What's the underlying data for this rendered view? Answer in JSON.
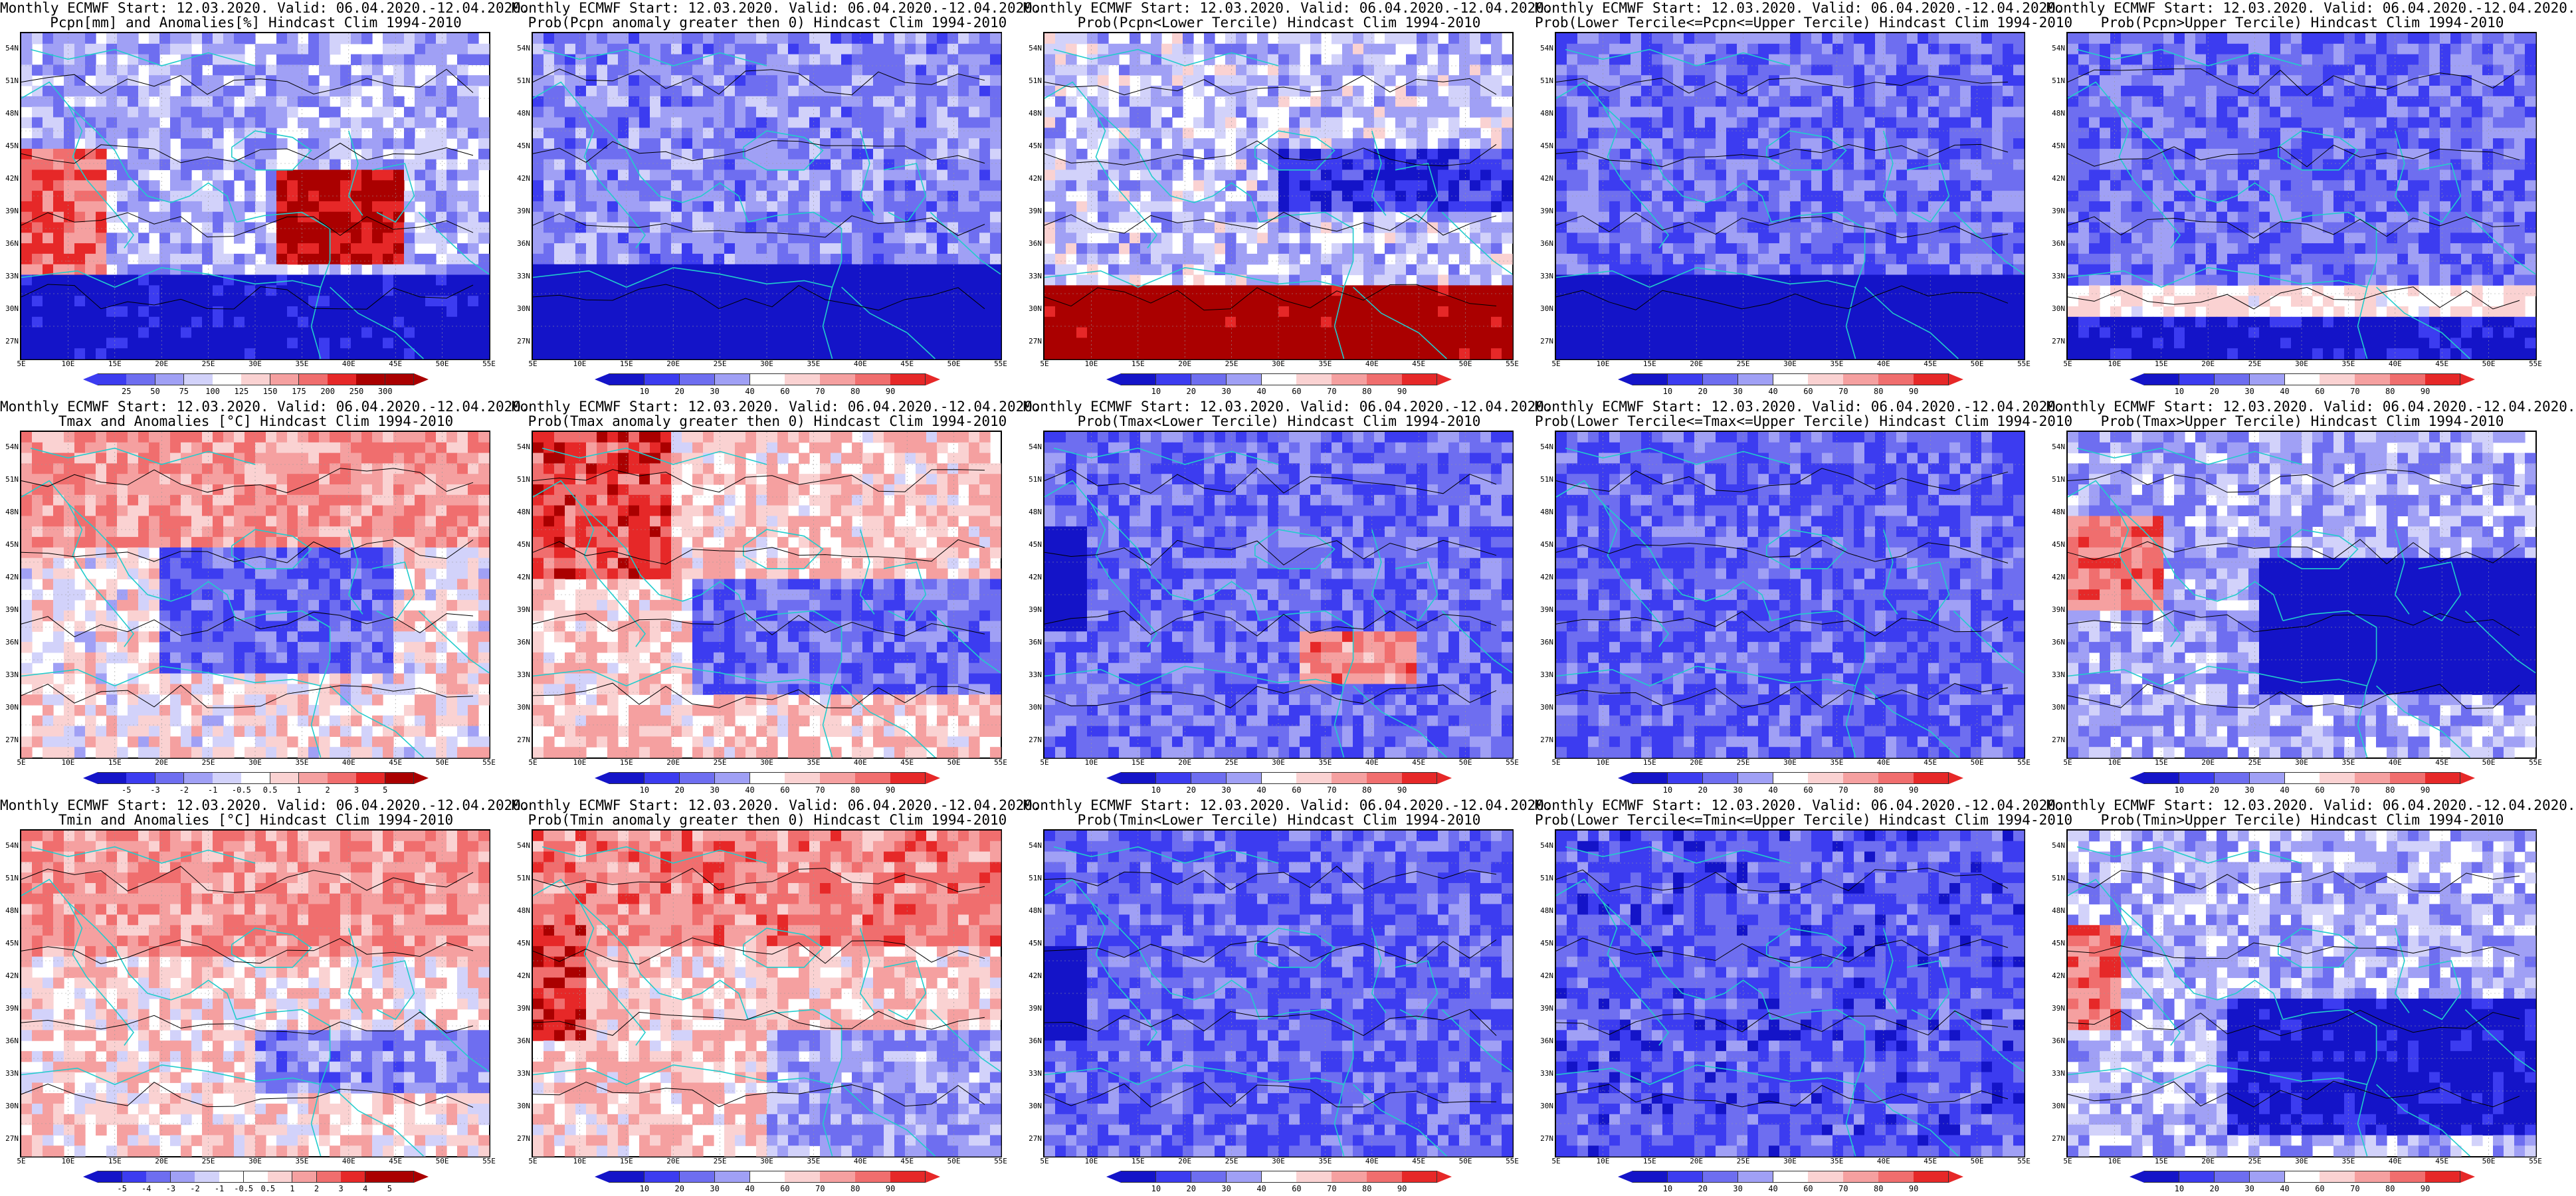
{
  "colors": {
    "dark_blue": "#1414c8",
    "blue": "#3c3cf0",
    "mid_blue": "#6e6ef0",
    "light_blue": "#a0a0f5",
    "pale_blue": "#d2d2fa",
    "white": "#ffffff",
    "pale_red": "#fad2d2",
    "light_red": "#f5a0a0",
    "mid_red": "#f06e6e",
    "red": "#e62828",
    "dark_red": "#aa0000",
    "coast": "#22cccc",
    "contour": "#000000"
  },
  "axes": {
    "lat_labels": [
      "54N",
      "51N",
      "48N",
      "45N",
      "42N",
      "39N",
      "36N",
      "33N",
      "30N",
      "27N"
    ],
    "lon_labels": [
      "5E",
      "10E",
      "15E",
      "20E",
      "25E",
      "30E",
      "35E",
      "40E",
      "45E",
      "50E",
      "55E"
    ]
  },
  "colorbars": {
    "precip": [
      "25",
      "50",
      "75",
      "100",
      "125",
      "150",
      "175",
      "200",
      "250",
      "300"
    ],
    "prob": [
      "10",
      "20",
      "30",
      "40",
      "60",
      "70",
      "80",
      "90"
    ],
    "temp": [
      "-5",
      "-3",
      "-2",
      "-1",
      "-0.5",
      "0.5",
      "1",
      "2",
      "3",
      "5"
    ],
    "tmin": [
      "-5",
      "-4",
      "-3",
      "-2",
      "-1",
      "-0.5",
      "0.5",
      "1",
      "2",
      "3",
      "4",
      "5"
    ]
  },
  "panels": [
    {
      "id": "p1",
      "title1": "Monthly ECMWF Start: 12.03.2020. Valid: 06.04.2020.-12.04.2020.",
      "title2": "Pcpn[mm] and Anomalies[%] Hindcast Clim 1994-2010",
      "cbar": "precip",
      "scheme": "pcpn_anom"
    },
    {
      "id": "p2",
      "title1": "Monthly ECMWF Start: 12.03.2020. Valid: 06.04.2020.-12.04.2020.",
      "title2": "Prob(Pcpn anomaly greater then 0) Hindcast Clim 1994-2010",
      "cbar": "prob",
      "scheme": "pcpn_pos"
    },
    {
      "id": "p3",
      "title1": "Monthly ECMWF Start: 12.03.2020. Valid: 06.04.2020.-12.04.2020.",
      "title2": "Prob(Pcpn<Lower Tercile) Hindcast Clim 1994-2010",
      "cbar": "prob",
      "scheme": "pcpn_low"
    },
    {
      "id": "p4",
      "title1": "Monthly ECMWF Start: 12.03.2020. Valid: 06.04.2020.-12.04.2020.",
      "title2": "Prob(Lower Tercile<=Pcpn<=Upper Tercile) Hindcast Clim 1994-2010",
      "cbar": "prob",
      "scheme": "pcpn_mid"
    },
    {
      "id": "p5",
      "title1": "Monthly ECMWF Start: 12.03.2020. Valid: 06.04.2020.-12.04.2020.",
      "title2": "Prob(Pcpn>Upper Tercile) Hindcast Clim 1994-2010",
      "cbar": "prob",
      "scheme": "pcpn_up"
    },
    {
      "id": "p6",
      "title1": "Monthly ECMWF Start: 12.03.2020. Valid: 06.04.2020.-12.04.2020.",
      "title2": "Tmax and Anomalies [°C] Hindcast Clim 1994-2010",
      "cbar": "temp",
      "scheme": "tmax_anom"
    },
    {
      "id": "p7",
      "title1": "Monthly ECMWF Start: 12.03.2020. Valid: 06.04.2020.-12.04.2020.",
      "title2": "Prob(Tmax anomaly greater then 0) Hindcast Clim 1994-2010",
      "cbar": "prob",
      "scheme": "tmax_pos"
    },
    {
      "id": "p8",
      "title1": "Monthly ECMWF Start: 12.03.2020. Valid: 06.04.2020.-12.04.2020.",
      "title2": "Prob(Tmax<Lower Tercile) Hindcast Clim 1994-2010",
      "cbar": "prob",
      "scheme": "tmax_low"
    },
    {
      "id": "p9",
      "title1": "Monthly ECMWF Start: 12.03.2020. Valid: 06.04.2020.-12.04.2020.",
      "title2": "Prob(Lower Tercile<=Tmax<=Upper Tercile) Hindcast Clim 1994-2010",
      "cbar": "prob",
      "scheme": "tmax_mid"
    },
    {
      "id": "p10",
      "title1": "Monthly ECMWF Start: 12.03.2020. Valid: 06.04.2020.-12.04.2020.",
      "title2": "Prob(Tmax>Upper Tercile) Hindcast Clim 1994-2010",
      "cbar": "prob",
      "scheme": "tmax_up"
    },
    {
      "id": "p11",
      "title1": "Monthly ECMWF Start: 12.03.2020. Valid: 06.04.2020.-12.04.2020.",
      "title2": "Tmin and Anomalies [°C] Hindcast Clim 1994-2010",
      "cbar": "tmin",
      "scheme": "tmin_anom"
    },
    {
      "id": "p12",
      "title1": "Monthly ECMWF Start: 12.03.2020. Valid: 06.04.2020.-12.04.2020.",
      "title2": "Prob(Tmin anomaly greater then 0) Hindcast Clim 1994-2010",
      "cbar": "prob",
      "scheme": "tmin_pos"
    },
    {
      "id": "p13",
      "title1": "Monthly ECMWF Start: 12.03.2020. Valid: 06.04.2020.-12.04.2020.",
      "title2": "Prob(Tmin<Lower Tercile) Hindcast Clim 1994-2010",
      "cbar": "prob",
      "scheme": "tmin_low"
    },
    {
      "id": "p14",
      "title1": "Monthly ECMWF Start: 12.03.2020. Valid: 06.04.2020.-12.04.2020.",
      "title2": "Prob(Lower Tercile<=Tmin<=Upper Tercile) Hindcast Clim 1994-2010",
      "cbar": "prob",
      "scheme": "tmin_mid"
    },
    {
      "id": "p15",
      "title1": "Monthly ECMWF Start: 12.03.2020. Valid: 06.04.2020.-12.04.2020.",
      "title2": "Prob(Tmin>Upper Tercile) Hindcast Clim 1994-2010",
      "cbar": "prob",
      "scheme": "tmin_up"
    }
  ]
}
